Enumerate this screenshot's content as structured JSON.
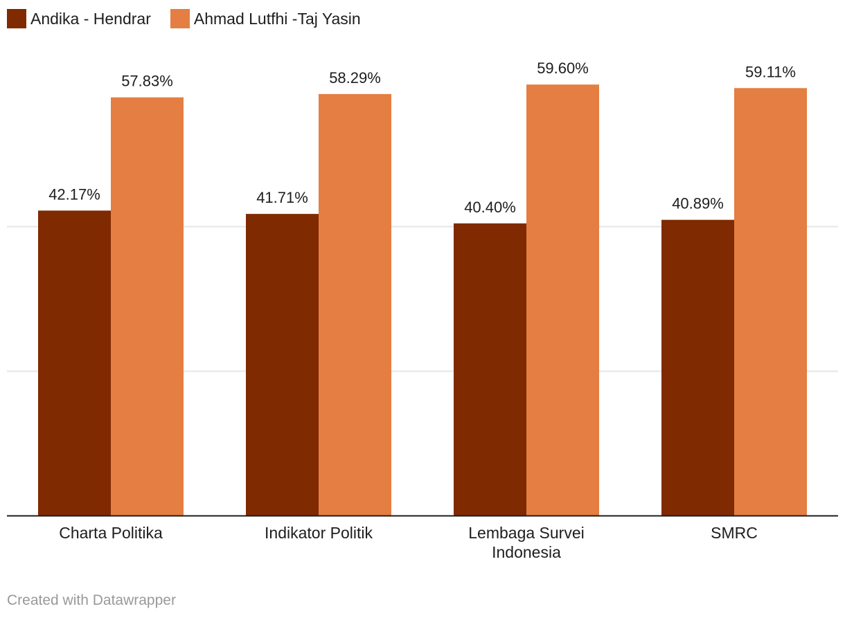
{
  "chart_data": {
    "type": "bar",
    "categories": [
      "Charta Politika",
      "Indikator Politik",
      "Lembaga Survei Indonesia",
      "SMRC"
    ],
    "category_lines": [
      [
        "Charta Politika"
      ],
      [
        "Indikator Politik"
      ],
      [
        "Lembaga Survei",
        "Indonesia"
      ],
      [
        "SMRC"
      ]
    ],
    "series": [
      {
        "name": "Andika - Hendrar",
        "color": "#7f2a01",
        "values": [
          42.17,
          41.71,
          40.4,
          40.89
        ],
        "labels": [
          "42.17%",
          "41.71%",
          "40.40%",
          "40.89%"
        ]
      },
      {
        "name": "Ahmad Lutfhi -Taj Yasin",
        "color": "#e47e42",
        "values": [
          57.83,
          58.29,
          59.6,
          59.11
        ],
        "labels": [
          "57.83%",
          "58.29%",
          "59.60%",
          "59.11%"
        ]
      }
    ],
    "ylim": [
      0,
      60
    ],
    "gridlines": [
      0,
      20,
      40
    ],
    "grid": true,
    "legend_placement": "top-left",
    "xlabel": "",
    "ylabel": ""
  },
  "footer": {
    "credit": "Created with Datawrapper"
  }
}
